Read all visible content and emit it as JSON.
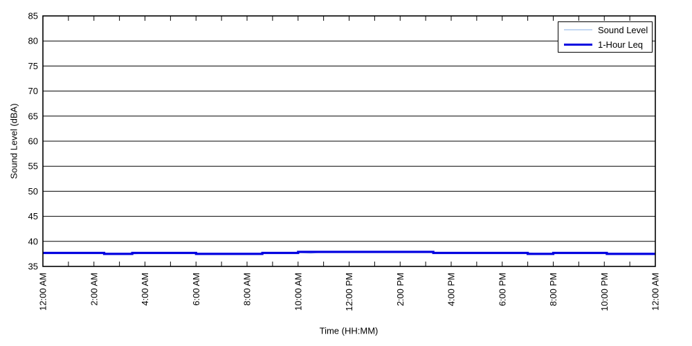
{
  "figure": {
    "background": "#ffffff",
    "axis_color": "#000000"
  },
  "chart_data": {
    "type": "line",
    "title": "",
    "xlabel": "Time (HH:MM)",
    "ylabel": "Sound Level (dBA)",
    "ylim": [
      35,
      85
    ],
    "ytick_step": 5,
    "ytick_labels": [
      "35",
      "40",
      "45",
      "50",
      "55",
      "60",
      "65",
      "70",
      "75",
      "80",
      "85"
    ],
    "xlim_hours": [
      0,
      24
    ],
    "xtick_step_hours": 1,
    "xtick_label_step_hours": 2,
    "xtick_labels": [
      "12:00 AM",
      "2:00 AM",
      "4:00 AM",
      "6:00 AM",
      "8:00 AM",
      "10:00 AM",
      "12:00 PM",
      "2:00 PM",
      "4:00 PM",
      "6:00 PM",
      "8:00 PM",
      "10:00 PM",
      "12:00 AM"
    ],
    "grid": {
      "horizontal": true,
      "vertical": false,
      "color": "#000000",
      "style": "solid"
    },
    "legend": {
      "position": "top-right",
      "entries": [
        {
          "label": "Sound Level",
          "color": "#c3d7f3",
          "line_height": 2
        },
        {
          "label": "1-Hour Leq",
          "color": "#0000e0",
          "line_height": 3
        }
      ]
    },
    "series": [
      {
        "name": "Sound Level",
        "color": "#c3d7f3",
        "width": 1.3,
        "x": [
          0,
          0.5,
          1,
          1.5,
          2,
          2.5,
          3,
          3.5,
          4,
          4.5,
          5,
          5.5,
          6,
          6.5,
          7,
          7.5,
          8,
          8.5,
          9,
          9.5,
          10,
          10.5,
          11,
          11.5,
          12,
          12.5,
          13,
          13.5,
          14,
          14.5,
          15,
          15.5,
          16,
          16.5,
          17,
          17.5,
          18,
          18.5,
          19,
          19.5,
          20,
          20.5,
          21,
          21.5,
          22,
          22.5,
          23,
          23.5,
          24
        ],
        "y": [
          37.78,
          37.63,
          37.72,
          37.6,
          37.8,
          37.5,
          37.58,
          37.45,
          37.72,
          37.6,
          37.8,
          37.7,
          37.58,
          37.43,
          37.52,
          37.4,
          37.6,
          37.5,
          37.78,
          37.63,
          37.82,
          37.6,
          37.95,
          37.8,
          37.92,
          37.83,
          37.98,
          37.88,
          37.92,
          37.8,
          37.9,
          37.78,
          37.63,
          37.72,
          37.6,
          37.8,
          37.7,
          37.58,
          37.73,
          37.43,
          37.52,
          37.8,
          37.63,
          37.72,
          37.6,
          37.5,
          37.58,
          37.43,
          37.52
        ]
      },
      {
        "name": "1-Hour Leq",
        "color": "#0000e0",
        "width": 3.2,
        "x": [
          0,
          2.4,
          2.4,
          3.5,
          3.5,
          6,
          6,
          8.6,
          8.6,
          10,
          10,
          15.3,
          15.3,
          19,
          19,
          20,
          20,
          22.1,
          22.1,
          24
        ],
        "y": [
          37.7,
          37.7,
          37.5,
          37.5,
          37.7,
          37.7,
          37.5,
          37.5,
          37.7,
          37.7,
          37.9,
          37.9,
          37.7,
          37.7,
          37.5,
          37.5,
          37.7,
          37.7,
          37.5,
          37.5
        ]
      }
    ]
  }
}
